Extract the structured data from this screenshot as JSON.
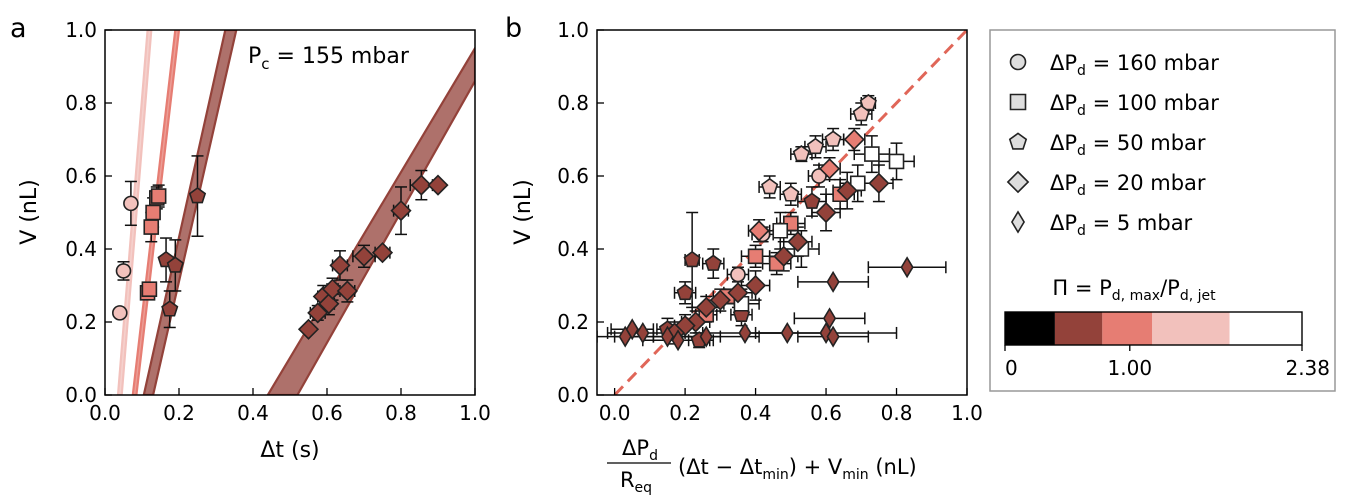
{
  "figure": {
    "panel_a_letter": "a",
    "panel_b_letter": "b",
    "annotation_a": "Pc = 155 mbar",
    "legend": {
      "entries": [
        {
          "marker": "circle",
          "label": "ΔPd = 160 mbar"
        },
        {
          "marker": "square",
          "label": "ΔPd = 100 mbar"
        },
        {
          "marker": "pentagon",
          "label": "ΔPd = 50 mbar"
        },
        {
          "marker": "diamond",
          "label": "ΔPd = 20 mbar"
        },
        {
          "marker": "thin-diamond",
          "label": "ΔPd = 5 mbar"
        }
      ],
      "colorbar_title": "Π = Pd,max/Pd,jet",
      "colorbar_ticks": [
        {
          "value": 0,
          "label": "0"
        },
        {
          "value": 1.0,
          "label": "1.00"
        },
        {
          "value": 2.38,
          "label": "2.38"
        }
      ],
      "colorbar_range": [
        0,
        2.38
      ],
      "colorbar_bins": [
        {
          "from": 0,
          "to": 0.4,
          "color": "#000000"
        },
        {
          "from": 0.4,
          "to": 0.78,
          "color": "#93423a"
        },
        {
          "from": 0.78,
          "to": 1.18,
          "color": "#e67d73"
        },
        {
          "from": 1.18,
          "to": 1.8,
          "color": "#f2c1bc"
        },
        {
          "from": 1.8,
          "to": 2.38,
          "color": "#ffffff"
        }
      ]
    }
  },
  "chart_data": [
    {
      "type": "scatter",
      "panel": "a",
      "xlabel": "Δt (s)",
      "ylabel": "V (nL)",
      "xlim": [
        0,
        1
      ],
      "ylim": [
        0,
        1
      ],
      "xticks": [
        0.0,
        0.2,
        0.4,
        0.6,
        0.8,
        1.0
      ],
      "yticks": [
        0.0,
        0.2,
        0.4,
        0.6,
        0.8,
        1.0
      ],
      "tick_labels": [
        "0.0",
        "0.2",
        "0.4",
        "0.6",
        "0.8",
        "1.0"
      ],
      "bands": [
        {
          "color": "#f2c1bc",
          "lower": [
            [
              0.045,
              0
            ],
            [
              0.125,
              1
            ]
          ],
          "upper": [
            [
              0.035,
              0
            ],
            [
              0.115,
              1
            ]
          ]
        },
        {
          "color": "#e67d73",
          "lower": [
            [
              0.085,
              0
            ],
            [
              0.2,
              1
            ]
          ],
          "upper": [
            [
              0.075,
              0
            ],
            [
              0.19,
              1
            ]
          ]
        },
        {
          "color": "#93423a",
          "lower": [
            [
              0.13,
              0
            ],
            [
              0.355,
              1
            ]
          ],
          "upper": [
            [
              0.105,
              0
            ],
            [
              0.325,
              1
            ]
          ]
        },
        {
          "color": "#93423a",
          "lower": [
            [
              0.52,
              0
            ],
            [
              1.0,
              0.86
            ]
          ],
          "upper": [
            [
              0.44,
              0
            ],
            [
              1.0,
              0.95
            ]
          ]
        }
      ],
      "series": [
        {
          "marker": "circle",
          "color": "#f2c1bc",
          "points": [
            {
              "x": 0.04,
              "y": 0.225,
              "yerr": 0.0
            },
            {
              "x": 0.05,
              "y": 0.34,
              "yerr": 0.025
            },
            {
              "x": 0.07,
              "y": 0.525,
              "yerr": 0.06
            }
          ]
        },
        {
          "marker": "square",
          "color": "#e67d73",
          "points": [
            {
              "x": 0.115,
              "y": 0.28,
              "yerr": 0.0
            },
            {
              "x": 0.12,
              "y": 0.29,
              "yerr": 0.0
            },
            {
              "x": 0.125,
              "y": 0.46,
              "yerr": 0.04
            },
            {
              "x": 0.13,
              "y": 0.5,
              "yerr": 0.04
            },
            {
              "x": 0.14,
              "y": 0.54,
              "yerr": 0.03
            },
            {
              "x": 0.145,
              "y": 0.545,
              "yerr": 0.03
            }
          ]
        },
        {
          "marker": "pentagon",
          "color": "#93423a",
          "points": [
            {
              "x": 0.165,
              "y": 0.37,
              "yerr": 0.06
            },
            {
              "x": 0.175,
              "y": 0.235,
              "yerr": 0.05
            },
            {
              "x": 0.19,
              "y": 0.355,
              "yerr": 0.07
            },
            {
              "x": 0.25,
              "y": 0.545,
              "yerr": 0.11
            }
          ]
        },
        {
          "marker": "diamond",
          "color": "#93423a",
          "points": [
            {
              "x": 0.55,
              "y": 0.18,
              "xerr": 0.0,
              "yerr": 0.0
            },
            {
              "x": 0.575,
              "y": 0.225,
              "xerr": 0.02,
              "yerr": 0.02
            },
            {
              "x": 0.59,
              "y": 0.27,
              "xerr": 0.015,
              "yerr": 0.03
            },
            {
              "x": 0.605,
              "y": 0.25,
              "xerr": 0.015,
              "yerr": 0.03
            },
            {
              "x": 0.615,
              "y": 0.29,
              "xerr": 0.015,
              "yerr": 0.03
            },
            {
              "x": 0.635,
              "y": 0.355,
              "xerr": 0.02,
              "yerr": 0.04
            },
            {
              "x": 0.655,
              "y": 0.285,
              "xerr": 0.02,
              "yerr": 0.03
            },
            {
              "x": 0.7,
              "y": 0.38,
              "xerr": 0.03,
              "yerr": 0.03
            },
            {
              "x": 0.75,
              "y": 0.39,
              "xerr": 0.02,
              "yerr": 0.01
            },
            {
              "x": 0.8,
              "y": 0.505,
              "xerr": 0.02,
              "yerr": 0.065
            },
            {
              "x": 0.855,
              "y": 0.575,
              "xerr": 0.03,
              "yerr": 0.04
            },
            {
              "x": 0.9,
              "y": 0.575,
              "xerr": 0.0,
              "yerr": 0.0
            }
          ]
        }
      ]
    },
    {
      "type": "scatter",
      "panel": "b",
      "xlabel": "ΔPd/Req (Δt − Δtmin) + Vmin (nL)",
      "xlabel_parts": {
        "num": "ΔP",
        "num_sub": "d",
        "den": "R",
        "den_sub": "eq",
        "rest": "(Δt − Δt",
        "rest_sub": "min",
        "rest2": ") + V",
        "rest2_sub": "min",
        "rest3": " (nL)"
      },
      "ylabel": "V (nL)",
      "xlim": [
        -0.05,
        1.0
      ],
      "ylim": [
        0,
        1
      ],
      "xticks": [
        0.0,
        0.2,
        0.4,
        0.6,
        0.8,
        1.0
      ],
      "yticks": [
        0.0,
        0.2,
        0.4,
        0.6,
        0.8,
        1.0
      ],
      "tick_labels": [
        "0.0",
        "0.2",
        "0.4",
        "0.6",
        "0.8",
        "1.0"
      ],
      "reference_line": {
        "from": [
          0,
          0
        ],
        "to": [
          1,
          1
        ],
        "color": "#e06658",
        "style": "dashed"
      },
      "series": [
        {
          "marker": "circle",
          "color": "#f2c1bc",
          "points": [
            {
              "x": 0.42,
              "y": 0.44,
              "xerr": 0.03,
              "yerr": 0.02
            },
            {
              "x": 0.58,
              "y": 0.6,
              "xerr": 0.03,
              "yerr": 0.03
            },
            {
              "x": 0.35,
              "y": 0.33,
              "xerr": 0.03,
              "yerr": 0.02
            }
          ]
        },
        {
          "marker": "square",
          "color": "#e67d73",
          "points": [
            {
              "x": 0.64,
              "y": 0.55,
              "xerr": 0.04,
              "yerr": 0.04
            },
            {
              "x": 0.5,
              "y": 0.47,
              "xerr": 0.04,
              "yerr": 0.03
            },
            {
              "x": 0.4,
              "y": 0.38,
              "xerr": 0.04,
              "yerr": 0.03
            },
            {
              "x": 0.46,
              "y": 0.36,
              "xerr": 0.04,
              "yerr": 0.03
            },
            {
              "x": 0.32,
              "y": 0.27,
              "xerr": 0.04,
              "yerr": 0.02
            },
            {
              "x": 0.26,
              "y": 0.22,
              "xerr": 0.03,
              "yerr": 0.02
            }
          ]
        },
        {
          "marker": "pentagon",
          "color": "#93423a",
          "points": [
            {
              "x": 0.22,
              "y": 0.37,
              "xerr": 0.02,
              "yerr": 0.13
            },
            {
              "x": 0.28,
              "y": 0.36,
              "xerr": 0.03,
              "yerr": 0.04
            },
            {
              "x": 0.2,
              "y": 0.28,
              "xerr": 0.03,
              "yerr": 0.03
            },
            {
              "x": 0.15,
              "y": 0.18,
              "xerr": 0.03,
              "yerr": 0.03
            },
            {
              "x": 0.24,
              "y": 0.15,
              "xerr": 0.03,
              "yerr": 0.02
            },
            {
              "x": 0.36,
              "y": 0.22,
              "xerr": 0.03,
              "yerr": 0.03
            },
            {
              "x": 0.56,
              "y": 0.53,
              "xerr": 0.04,
              "yerr": 0.04
            }
          ]
        },
        {
          "marker": "pentagon",
          "color": "#f2c1bc",
          "points": [
            {
              "x": 0.72,
              "y": 0.8,
              "xerr": 0.02,
              "yerr": 0.02
            },
            {
              "x": 0.7,
              "y": 0.77,
              "xerr": 0.03,
              "yerr": 0.03
            },
            {
              "x": 0.62,
              "y": 0.7,
              "xerr": 0.03,
              "yerr": 0.03
            },
            {
              "x": 0.57,
              "y": 0.68,
              "xerr": 0.03,
              "yerr": 0.03
            },
            {
              "x": 0.53,
              "y": 0.66,
              "xerr": 0.03,
              "yerr": 0.02
            },
            {
              "x": 0.44,
              "y": 0.57,
              "xerr": 0.03,
              "yerr": 0.03
            },
            {
              "x": 0.5,
              "y": 0.55,
              "xerr": 0.03,
              "yerr": 0.03
            }
          ]
        },
        {
          "marker": "square",
          "color": "#ffffff",
          "points": [
            {
              "x": 0.8,
              "y": 0.64,
              "xerr": 0.05,
              "yerr": 0.05
            },
            {
              "x": 0.73,
              "y": 0.66,
              "xerr": 0.05,
              "yerr": 0.05
            },
            {
              "x": 0.69,
              "y": 0.58,
              "xerr": 0.05,
              "yerr": 0.05
            },
            {
              "x": 0.53,
              "y": 0.4,
              "xerr": 0.05,
              "yerr": 0.05
            },
            {
              "x": 0.47,
              "y": 0.45,
              "xerr": 0.05,
              "yerr": 0.05
            },
            {
              "x": 0.36,
              "y": 0.25,
              "xerr": 0.05,
              "yerr": 0.04
            }
          ]
        },
        {
          "marker": "diamond",
          "color": "#e67d73",
          "points": [
            {
              "x": 0.68,
              "y": 0.7,
              "xerr": 0.03,
              "yerr": 0.03
            },
            {
              "x": 0.61,
              "y": 0.62,
              "xerr": 0.03,
              "yerr": 0.03
            },
            {
              "x": 0.41,
              "y": 0.45,
              "xerr": 0.03,
              "yerr": 0.03
            }
          ]
        },
        {
          "marker": "diamond",
          "color": "#93423a",
          "points": [
            {
              "x": 0.75,
              "y": 0.58,
              "xerr": 0.04,
              "yerr": 0.05
            },
            {
              "x": 0.66,
              "y": 0.56,
              "xerr": 0.04,
              "yerr": 0.05
            },
            {
              "x": 0.6,
              "y": 0.5,
              "xerr": 0.04,
              "yerr": 0.05
            },
            {
              "x": 0.52,
              "y": 0.42,
              "xerr": 0.04,
              "yerr": 0.04
            },
            {
              "x": 0.48,
              "y": 0.38,
              "xerr": 0.04,
              "yerr": 0.04
            },
            {
              "x": 0.4,
              "y": 0.3,
              "xerr": 0.04,
              "yerr": 0.04
            },
            {
              "x": 0.35,
              "y": 0.28,
              "xerr": 0.04,
              "yerr": 0.04
            },
            {
              "x": 0.3,
              "y": 0.26,
              "xerr": 0.04,
              "yerr": 0.03
            },
            {
              "x": 0.26,
              "y": 0.24,
              "xerr": 0.04,
              "yerr": 0.03
            },
            {
              "x": 0.23,
              "y": 0.2,
              "xerr": 0.04,
              "yerr": 0.03
            },
            {
              "x": 0.2,
              "y": 0.19,
              "xerr": 0.03,
              "yerr": 0.03
            },
            {
              "x": 0.17,
              "y": 0.17,
              "xerr": 0.03,
              "yerr": 0.03
            }
          ]
        },
        {
          "marker": "thin-diamond",
          "color": "#93423a",
          "points": [
            {
              "x": 0.83,
              "y": 0.35,
              "xerr": 0.11,
              "yerr": 0.0
            },
            {
              "x": 0.62,
              "y": 0.31,
              "xerr": 0.1,
              "yerr": 0.0
            },
            {
              "x": 0.61,
              "y": 0.21,
              "xerr": 0.1,
              "yerr": 0.0
            },
            {
              "x": 0.6,
              "y": 0.17,
              "xerr": 0.2,
              "yerr": 0.0
            },
            {
              "x": 0.62,
              "y": 0.16,
              "xerr": 0.1,
              "yerr": 0.0
            },
            {
              "x": 0.49,
              "y": 0.17,
              "xerr": 0.12,
              "yerr": 0.0
            },
            {
              "x": 0.37,
              "y": 0.17,
              "xerr": 0.12,
              "yerr": 0.0
            },
            {
              "x": 0.26,
              "y": 0.16,
              "xerr": 0.15,
              "yerr": 0.0
            },
            {
              "x": 0.15,
              "y": 0.16,
              "xerr": 0.15,
              "yerr": 0.0
            },
            {
              "x": 0.08,
              "y": 0.17,
              "xerr": 0.1,
              "yerr": 0.0
            },
            {
              "x": 0.05,
              "y": 0.18,
              "xerr": 0.06,
              "yerr": 0.0
            },
            {
              "x": 0.03,
              "y": 0.16,
              "xerr": 0.08,
              "yerr": 0.0
            },
            {
              "x": 0.18,
              "y": 0.15,
              "xerr": 0.1,
              "yerr": 0.0
            }
          ]
        }
      ]
    }
  ]
}
